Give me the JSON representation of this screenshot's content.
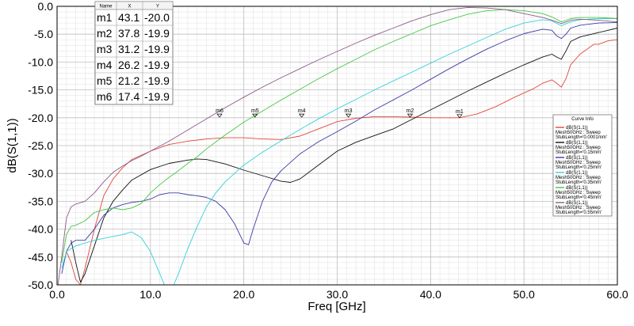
{
  "chart_data": {
    "type": "line",
    "xlabel": "Freq [GHz]",
    "ylabel": "dB(S(1,1))",
    "xlim": [
      0,
      60
    ],
    "ylim": [
      -50,
      0
    ],
    "x_ticks": [
      "0.0",
      "10.0",
      "20.0",
      "30.0",
      "40.0",
      "50.0",
      "60.0"
    ],
    "y_ticks": [
      "0.0",
      "-5.0",
      "-10.0",
      "-15.0",
      "-20.0",
      "-25.0",
      "-30.0",
      "-35.0",
      "-40.0",
      "-45.0",
      "-50.0"
    ],
    "grid": true,
    "legend_title": "Curve Info",
    "legend_position": "right",
    "series": [
      {
        "color": "#e2473b",
        "legend": [
          "dB(S(1,1))",
          "Mesh50GHz : Sweep",
          "StubLength='0.0001mm'"
        ],
        "points": [
          [
            1,
            -44
          ],
          [
            1.5,
            -46
          ],
          [
            2,
            -49
          ],
          [
            2.5,
            -50
          ],
          [
            3,
            -47
          ],
          [
            4,
            -40
          ],
          [
            5,
            -34
          ],
          [
            6,
            -31
          ],
          [
            7,
            -29
          ],
          [
            8,
            -27.5
          ],
          [
            10,
            -26
          ],
          [
            12,
            -24.8
          ],
          [
            14,
            -24.2
          ],
          [
            16,
            -23.8
          ],
          [
            18,
            -23.6
          ],
          [
            20,
            -23.6
          ],
          [
            22,
            -23.8
          ],
          [
            24,
            -23.9
          ],
          [
            26,
            -23.3
          ],
          [
            28,
            -22
          ],
          [
            30,
            -20.7
          ],
          [
            32,
            -20.1
          ],
          [
            34,
            -19.8
          ],
          [
            36,
            -19.8
          ],
          [
            38,
            -19.9
          ],
          [
            40,
            -20
          ],
          [
            42,
            -20
          ],
          [
            43.1,
            -20.0
          ],
          [
            45,
            -19.3
          ],
          [
            47,
            -18
          ],
          [
            49,
            -16.3
          ],
          [
            51,
            -14.8
          ],
          [
            52,
            -13.8
          ],
          [
            53,
            -13.2
          ],
          [
            53.5,
            -13.8
          ],
          [
            54,
            -14.5
          ],
          [
            54.5,
            -13
          ],
          [
            55,
            -10.5
          ],
          [
            56,
            -8.6
          ],
          [
            57,
            -7.4
          ],
          [
            57.5,
            -6.8
          ],
          [
            58,
            -6.8
          ],
          [
            59,
            -6.2
          ],
          [
            60,
            -6
          ]
        ]
      },
      {
        "color": "#111111",
        "legend": [
          "dB(S(1,1))",
          "Mesh50GHz : Sweep",
          "StubLength='0.15mm'"
        ],
        "points": [
          [
            1.5,
            -42
          ],
          [
            2,
            -46
          ],
          [
            2.5,
            -49.5
          ],
          [
            3,
            -48
          ],
          [
            4,
            -43
          ],
          [
            5,
            -38
          ],
          [
            6,
            -35
          ],
          [
            7,
            -33
          ],
          [
            8,
            -31.2
          ],
          [
            10,
            -29.3
          ],
          [
            12,
            -28.2
          ],
          [
            14,
            -27.6
          ],
          [
            15,
            -27.4
          ],
          [
            16,
            -27.5
          ],
          [
            18,
            -28.3
          ],
          [
            20,
            -29.4
          ],
          [
            22,
            -30.4
          ],
          [
            24,
            -31.4
          ],
          [
            25,
            -31.6
          ],
          [
            26,
            -31
          ],
          [
            28,
            -28.5
          ],
          [
            30,
            -26
          ],
          [
            32,
            -24.4
          ],
          [
            34,
            -23.2
          ],
          [
            36,
            -22
          ],
          [
            38,
            -20.3
          ],
          [
            40,
            -18.6
          ],
          [
            42,
            -16.9
          ],
          [
            44,
            -15.2
          ],
          [
            46,
            -13.6
          ],
          [
            48,
            -12
          ],
          [
            50,
            -10.5
          ],
          [
            52,
            -9.1
          ],
          [
            53,
            -8.6
          ],
          [
            53.5,
            -9.1
          ],
          [
            54,
            -9.5
          ],
          [
            54.5,
            -8
          ],
          [
            55,
            -6.3
          ],
          [
            56,
            -5.5
          ],
          [
            58,
            -4.7
          ],
          [
            60,
            -3.9
          ]
        ]
      },
      {
        "color": "#3a3aa8",
        "legend": [
          "dB(S(1,1))",
          "Mesh50GHz : Sweep",
          "StubLength='0.25mm'"
        ],
        "points": [
          [
            0.5,
            -48
          ],
          [
            1,
            -44
          ],
          [
            1.5,
            -42.5
          ],
          [
            2,
            -42
          ],
          [
            3,
            -42
          ],
          [
            4,
            -40
          ],
          [
            5,
            -37.5
          ],
          [
            6,
            -36.2
          ],
          [
            7,
            -35.6
          ],
          [
            8,
            -35.2
          ],
          [
            9,
            -35
          ],
          [
            10,
            -34.6
          ],
          [
            11,
            -33.8
          ],
          [
            12,
            -33.5
          ],
          [
            13,
            -33.5
          ],
          [
            14,
            -33.8
          ],
          [
            15,
            -34
          ],
          [
            16,
            -34.3
          ],
          [
            17,
            -35
          ],
          [
            18,
            -36.5
          ],
          [
            19,
            -39
          ],
          [
            20,
            -42.5
          ],
          [
            20.5,
            -42.8
          ],
          [
            21,
            -40
          ],
          [
            22,
            -35
          ],
          [
            23,
            -31.5
          ],
          [
            24,
            -29.5
          ],
          [
            26,
            -26.5
          ],
          [
            28,
            -24.3
          ],
          [
            30,
            -22.5
          ],
          [
            32,
            -20.6
          ],
          [
            34,
            -18.6
          ],
          [
            36,
            -16.8
          ],
          [
            38,
            -15
          ],
          [
            40,
            -13.1
          ],
          [
            42,
            -11.2
          ],
          [
            44,
            -9.4
          ],
          [
            46,
            -7.7
          ],
          [
            48,
            -6.2
          ],
          [
            50,
            -4.9
          ],
          [
            52,
            -4.1
          ],
          [
            53,
            -4.3
          ],
          [
            53.5,
            -5.3
          ],
          [
            54,
            -5.8
          ],
          [
            54.5,
            -5
          ],
          [
            55,
            -3.9
          ],
          [
            56,
            -3.4
          ],
          [
            58,
            -3
          ],
          [
            60,
            -2.9
          ]
        ]
      },
      {
        "color": "#33d1d8",
        "legend": [
          "dB(S(1,1))",
          "Mesh50GHz : Sweep",
          "StubLength='0.35mm'"
        ],
        "points": [
          [
            0.5,
            -47
          ],
          [
            1,
            -44
          ],
          [
            2,
            -43
          ],
          [
            4,
            -42
          ],
          [
            6,
            -41.3
          ],
          [
            7,
            -41
          ],
          [
            8,
            -40.5
          ],
          [
            9,
            -41.5
          ],
          [
            10,
            -44
          ],
          [
            11,
            -48
          ],
          [
            11.5,
            -50
          ],
          [
            12.5,
            -50
          ],
          [
            13,
            -48
          ],
          [
            14,
            -43.5
          ],
          [
            15,
            -39.5
          ],
          [
            16,
            -36
          ],
          [
            17,
            -33.5
          ],
          [
            18,
            -31.5
          ],
          [
            20,
            -28.5
          ],
          [
            22,
            -26.2
          ],
          [
            24,
            -24.1
          ],
          [
            26,
            -22.1
          ],
          [
            28,
            -20.2
          ],
          [
            30,
            -18.4
          ],
          [
            32,
            -16.7
          ],
          [
            34,
            -15
          ],
          [
            36,
            -13.4
          ],
          [
            38,
            -11.8
          ],
          [
            40,
            -10.2
          ],
          [
            42,
            -8.6
          ],
          [
            44,
            -7.1
          ],
          [
            46,
            -5.6
          ],
          [
            48,
            -4.1
          ],
          [
            50,
            -3
          ],
          [
            52,
            -2.4
          ],
          [
            53,
            -2.6
          ],
          [
            54,
            -3.5
          ],
          [
            55,
            -2.8
          ],
          [
            56,
            -2.4
          ],
          [
            58,
            -2.2
          ],
          [
            60,
            -2.2
          ]
        ]
      },
      {
        "color": "#45c845",
        "legend": [
          "dB(S(1,1))",
          "Mesh50GHz : Sweep",
          "StubLength='0.45mm'"
        ],
        "points": [
          [
            0.5,
            -46
          ],
          [
            1,
            -41
          ],
          [
            1.5,
            -39.5
          ],
          [
            2,
            -39.3
          ],
          [
            3,
            -38.5
          ],
          [
            4,
            -37
          ],
          [
            5,
            -36.5
          ],
          [
            6,
            -36.2
          ],
          [
            7,
            -36.5
          ],
          [
            8,
            -36.2
          ],
          [
            9,
            -35.4
          ],
          [
            10,
            -33.5
          ],
          [
            11,
            -32
          ],
          [
            12,
            -30.7
          ],
          [
            13,
            -29.5
          ],
          [
            14,
            -28.2
          ],
          [
            15,
            -27
          ],
          [
            16,
            -25.6
          ],
          [
            18,
            -23.1
          ],
          [
            20,
            -20.8
          ],
          [
            22,
            -18.8
          ],
          [
            24,
            -16.8
          ],
          [
            26,
            -14.9
          ],
          [
            28,
            -13
          ],
          [
            30,
            -11.2
          ],
          [
            32,
            -9.5
          ],
          [
            34,
            -7.8
          ],
          [
            36,
            -6.3
          ],
          [
            38,
            -4.9
          ],
          [
            40,
            -3.5
          ],
          [
            42,
            -2.4
          ],
          [
            44,
            -1.4
          ],
          [
            46,
            -0.8
          ],
          [
            48,
            -0.6
          ],
          [
            50,
            -0.8
          ],
          [
            52,
            -1.3
          ],
          [
            53,
            -1.9
          ],
          [
            54,
            -2.8
          ],
          [
            55,
            -2.2
          ],
          [
            56,
            -2
          ],
          [
            58,
            -2
          ],
          [
            60,
            -2.2
          ]
        ]
      },
      {
        "color": "#8c5a88",
        "legend": [
          "dB(S(1,1))",
          "Mesh50GHz : Sweep",
          "StubLength='0.55mm'"
        ],
        "points": [
          [
            0.1,
            -50
          ],
          [
            0.5,
            -45
          ],
          [
            1,
            -38
          ],
          [
            1.5,
            -36
          ],
          [
            2,
            -35.5
          ],
          [
            3,
            -35
          ],
          [
            4,
            -33.5
          ],
          [
            5,
            -31.5
          ],
          [
            6,
            -29.8
          ],
          [
            7,
            -28.7
          ],
          [
            8,
            -27.7
          ],
          [
            9,
            -26.9
          ],
          [
            10,
            -26
          ],
          [
            12,
            -24.2
          ],
          [
            14,
            -22.2
          ],
          [
            16,
            -20.2
          ],
          [
            18,
            -18.2
          ],
          [
            20,
            -16.3
          ],
          [
            22,
            -14.5
          ],
          [
            24,
            -12.8
          ],
          [
            26,
            -11.2
          ],
          [
            28,
            -9.6
          ],
          [
            30,
            -8.1
          ],
          [
            32,
            -6.6
          ],
          [
            34,
            -5.2
          ],
          [
            36,
            -3.9
          ],
          [
            38,
            -2.6
          ],
          [
            40,
            -1.5
          ],
          [
            42,
            -0.6
          ],
          [
            44,
            -0.2
          ],
          [
            46,
            -0.3
          ],
          [
            48,
            -0.6
          ],
          [
            50,
            -1.3
          ],
          [
            52,
            -2
          ],
          [
            53,
            -2.5
          ],
          [
            54,
            -3.1
          ],
          [
            55,
            -2.5
          ],
          [
            56,
            -2.3
          ],
          [
            58,
            -2.5
          ],
          [
            60,
            -2.8
          ]
        ]
      }
    ],
    "markers": [
      {
        "name": "m1",
        "x": 43.1,
        "y": -20.0
      },
      {
        "name": "m2",
        "x": 37.8,
        "y": -19.9
      },
      {
        "name": "m3",
        "x": 31.2,
        "y": -19.9
      },
      {
        "name": "m4",
        "x": 26.2,
        "y": -19.9
      },
      {
        "name": "m5",
        "x": 21.2,
        "y": -19.9
      },
      {
        "name": "m6",
        "x": 17.4,
        "y": -19.9
      }
    ],
    "marker_table": {
      "headers": [
        "Name",
        "X",
        "Y"
      ],
      "rows": [
        [
          "m1",
          "43.1",
          "-20.0"
        ],
        [
          "m2",
          "37.8",
          "-19.9"
        ],
        [
          "m3",
          "31.2",
          "-19.9"
        ],
        [
          "m4",
          "26.2",
          "-19.9"
        ],
        [
          "m5",
          "21.2",
          "-19.9"
        ],
        [
          "m6",
          "17.4",
          "-19.9"
        ]
      ]
    }
  }
}
